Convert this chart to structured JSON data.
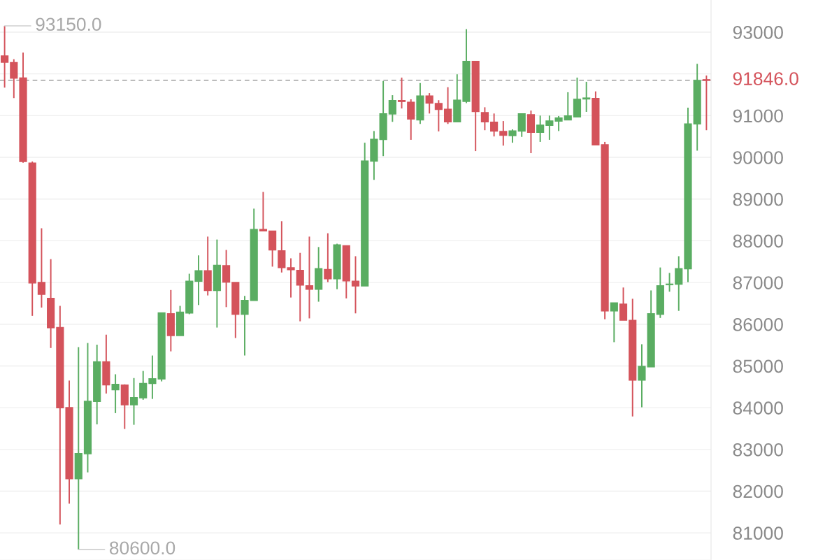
{
  "chart_data": {
    "type": "candlestick",
    "categories": [
      null,
      null,
      null,
      null,
      null,
      null,
      null,
      null,
      null,
      null,
      null,
      null,
      null,
      null,
      null,
      null,
      null,
      null,
      null,
      null,
      null,
      null,
      null,
      null,
      null,
      null,
      null,
      null,
      null,
      null,
      null,
      null,
      null,
      null,
      null,
      null,
      null,
      null,
      null,
      null,
      null,
      null,
      null,
      null,
      null,
      null,
      null,
      null,
      null,
      null,
      null,
      null,
      null,
      null,
      null,
      null,
      null,
      null,
      null,
      null,
      null,
      null,
      null,
      null,
      null,
      null,
      null,
      null,
      null,
      null,
      null,
      null,
      null,
      null,
      null,
      null,
      null
    ],
    "ohlc": [
      [
        92430,
        93150,
        91670,
        92280
      ],
      [
        92270,
        92350,
        91420,
        91900
      ],
      [
        91900,
        92510,
        89870,
        89900
      ],
      [
        89860,
        89900,
        86200,
        86990
      ],
      [
        87000,
        88300,
        86400,
        86720
      ],
      [
        86620,
        87560,
        85430,
        85920
      ],
      [
        85920,
        86440,
        81200,
        84000
      ],
      [
        84000,
        84650,
        81700,
        82300
      ],
      [
        82300,
        85450,
        80600,
        82900
      ],
      [
        82900,
        85550,
        82450,
        84150
      ],
      [
        84150,
        85510,
        83600,
        85100
      ],
      [
        85100,
        85750,
        84340,
        84550
      ],
      [
        84430,
        84800,
        83870,
        84560
      ],
      [
        84540,
        84560,
        83490,
        84070
      ],
      [
        84070,
        84710,
        83590,
        84240
      ],
      [
        84240,
        84880,
        84190,
        84580
      ],
      [
        84580,
        85250,
        84210,
        84690
      ],
      [
        84690,
        86270,
        84630,
        86270
      ],
      [
        86250,
        86820,
        85350,
        85730
      ],
      [
        85730,
        86440,
        85730,
        86290
      ],
      [
        86270,
        87210,
        86240,
        87030
      ],
      [
        87030,
        87650,
        86460,
        87280
      ],
      [
        87280,
        88100,
        86690,
        86810
      ],
      [
        86810,
        88030,
        85920,
        87410
      ],
      [
        87400,
        87780,
        86410,
        87010
      ],
      [
        87000,
        87000,
        85670,
        86240
      ],
      [
        86240,
        86680,
        85250,
        86570
      ],
      [
        86570,
        88770,
        86570,
        88270
      ],
      [
        88270,
        89170,
        88240,
        88240
      ],
      [
        88230,
        88230,
        87380,
        87780
      ],
      [
        87760,
        88470,
        87240,
        87360
      ],
      [
        87350,
        87580,
        86640,
        87310
      ],
      [
        87290,
        87710,
        86070,
        86940
      ],
      [
        86920,
        88100,
        86140,
        86840
      ],
      [
        86840,
        87850,
        86540,
        87330
      ],
      [
        87310,
        88180,
        87010,
        87090
      ],
      [
        87090,
        87930,
        86840,
        87900
      ],
      [
        87880,
        87880,
        86620,
        87040
      ],
      [
        87030,
        87630,
        86260,
        86920
      ],
      [
        86920,
        90350,
        86920,
        89910
      ],
      [
        89910,
        90630,
        89460,
        90430
      ],
      [
        90430,
        91830,
        90030,
        91040
      ],
      [
        91040,
        91490,
        90850,
        91360
      ],
      [
        91360,
        91910,
        91170,
        91340
      ],
      [
        91320,
        91390,
        90420,
        90920
      ],
      [
        90900,
        91780,
        90800,
        91470
      ],
      [
        91470,
        91540,
        91050,
        91300
      ],
      [
        91290,
        91370,
        90620,
        91150
      ],
      [
        91150,
        91680,
        90800,
        90850
      ],
      [
        90850,
        91990,
        90850,
        91370
      ],
      [
        91340,
        93070,
        91300,
        92300
      ],
      [
        92300,
        92300,
        90150,
        91100
      ],
      [
        91070,
        91200,
        90650,
        90850
      ],
      [
        90840,
        91050,
        90500,
        90630
      ],
      [
        90620,
        90870,
        90280,
        90530
      ],
      [
        90520,
        90670,
        90350,
        90630
      ],
      [
        90630,
        91050,
        90490,
        91040
      ],
      [
        91020,
        91120,
        90100,
        90600
      ],
      [
        90600,
        91000,
        90370,
        90770
      ],
      [
        90770,
        91000,
        90420,
        90870
      ],
      [
        90870,
        90990,
        90630,
        90940
      ],
      [
        90900,
        91560,
        90890,
        90990
      ],
      [
        90970,
        91910,
        90970,
        91390
      ],
      [
        91400,
        91810,
        91090,
        91420
      ],
      [
        91410,
        91580,
        90300,
        90300
      ],
      [
        90300,
        90370,
        86120,
        86320
      ],
      [
        86320,
        86510,
        85570,
        86510
      ],
      [
        86480,
        86880,
        86100,
        86100
      ],
      [
        86090,
        86610,
        83790,
        84660
      ],
      [
        84660,
        85520,
        84010,
        84990
      ],
      [
        84980,
        86810,
        84980,
        86250
      ],
      [
        86240,
        87360,
        86150,
        86920
      ],
      [
        86950,
        87230,
        86780,
        86960
      ],
      [
        86960,
        87630,
        86320,
        87330
      ],
      [
        87330,
        91190,
        87010,
        90800
      ],
      [
        90800,
        92240,
        90160,
        91840
      ],
      [
        91860,
        91960,
        90650,
        91846
      ]
    ],
    "colors": [
      "#d4535b",
      "#d4535b",
      "#d4535b",
      "#d4535b",
      "#d4535b",
      "#d4535b",
      "#d4535b",
      "#d4535b",
      "#5aad62",
      "#5aad62",
      "#5aad62",
      "#d4535b",
      "#5aad62",
      "#d4535b",
      "#5aad62",
      "#5aad62",
      "#5aad62",
      "#5aad62",
      "#d4535b",
      "#5aad62",
      "#5aad62",
      "#5aad62",
      "#d4535b",
      "#5aad62",
      "#d4535b",
      "#d4535b",
      "#5aad62",
      "#5aad62",
      "#d4535b",
      "#d4535b",
      "#d4535b",
      "#d4535b",
      "#d4535b",
      "#d4535b",
      "#5aad62",
      "#d4535b",
      "#5aad62",
      "#d4535b",
      "#d4535b",
      "#5aad62",
      "#5aad62",
      "#5aad62",
      "#5aad62",
      "#d4535b",
      "#d4535b",
      "#5aad62",
      "#d4535b",
      "#d4535b",
      "#d4535b",
      "#5aad62",
      "#5aad62",
      "#d4535b",
      "#d4535b",
      "#d4535b",
      "#d4535b",
      "#5aad62",
      "#5aad62",
      "#d4535b",
      "#5aad62",
      "#5aad62",
      "#5aad62",
      "#5aad62",
      "#5aad62",
      "#5aad62",
      "#d4535b",
      "#d4535b",
      "#5aad62",
      "#d4535b",
      "#d4535b",
      "#5aad62",
      "#5aad62",
      "#5aad62",
      "#5aad62",
      "#5aad62",
      "#5aad62",
      "#5aad62",
      "#d4535b"
    ],
    "ylim": [
      80350,
      93770
    ],
    "yticks": [
      81000,
      82000,
      83000,
      84000,
      85000,
      86000,
      87000,
      88000,
      89000,
      90000,
      91000,
      {
        "value": 92000,
        "label": null
      },
      93000
    ],
    "grid": "y",
    "tick_labels": "y",
    "ref_lines": [
      {
        "axis": "y",
        "value": 91846,
        "label": "91846.0",
        "color": "#b0b0b0",
        "line_style": "dashed"
      }
    ],
    "annotations": [
      "93150.0",
      "80600.0"
    ]
  }
}
